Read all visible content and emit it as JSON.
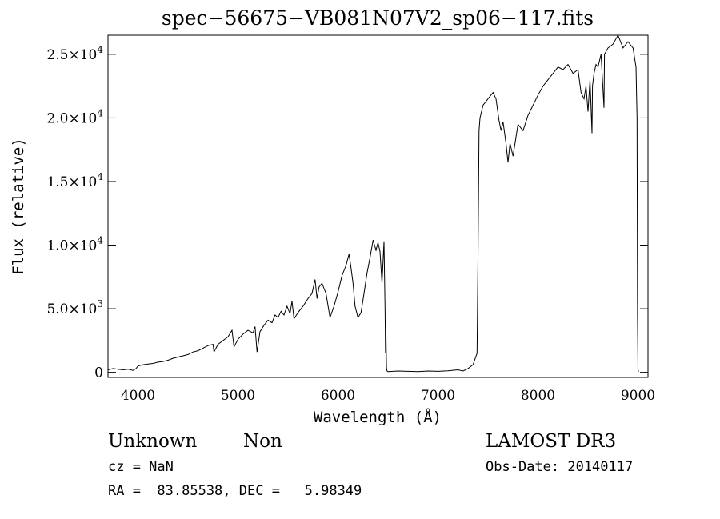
{
  "chart_data": {
    "type": "line",
    "title": "spec−56675−VB081N07V2_sp06−117.fits",
    "xlabel": "Wavelength (Å)",
    "ylabel": "Flux (relative)",
    "xlim": [
      3700,
      9100
    ],
    "ylim": [
      -400,
      26500
    ],
    "x_ticks": [
      4000,
      5000,
      6000,
      7000,
      8000,
      9000
    ],
    "x_tick_labels": [
      "4000",
      "5000",
      "6000",
      "7000",
      "8000",
      "9000"
    ],
    "y_ticks": [
      0,
      5000,
      10000,
      15000,
      20000,
      25000
    ],
    "y_tick_labels": [
      {
        "mantissa": "0",
        "exp": ""
      },
      {
        "mantissa": "5.0×10",
        "exp": "3"
      },
      {
        "mantissa": "1.0×10",
        "exp": "4"
      },
      {
        "mantissa": "1.5×10",
        "exp": "4"
      },
      {
        "mantissa": "2.0×10",
        "exp": "4"
      },
      {
        "mantissa": "2.5×10",
        "exp": "4"
      }
    ],
    "grid": false,
    "legend": "none",
    "line_color": "#000000",
    "series": [
      {
        "x": [
          3700,
          3750,
          3800,
          3850,
          3900,
          3950,
          3980,
          4000,
          4050,
          4100,
          4150,
          4200,
          4250,
          4300,
          4350,
          4400,
          4450,
          4500,
          4550,
          4600,
          4650,
          4700,
          4750,
          4760,
          4800,
          4850,
          4900,
          4940,
          4960,
          5000,
          5050,
          5100,
          5150,
          5170,
          5190,
          5220,
          5260,
          5300,
          5340,
          5370,
          5400,
          5430,
          5460,
          5490,
          5520,
          5540,
          5560,
          5600,
          5650,
          5700,
          5740,
          5770,
          5790,
          5810,
          5840,
          5880,
          5920,
          5960,
          6000,
          6040,
          6080,
          6110,
          6130,
          6150,
          6170,
          6200,
          6230,
          6260,
          6290,
          6320,
          6350,
          6380,
          6400,
          6420,
          6440,
          6460,
          6470,
          6475,
          6480,
          6485,
          6490,
          6500,
          6600,
          6700,
          6800,
          6900,
          7000,
          7100,
          7200,
          7250,
          7300,
          7350,
          7390,
          7400,
          7410,
          7420,
          7450,
          7500,
          7550,
          7580,
          7610,
          7630,
          7650,
          7680,
          7700,
          7720,
          7750,
          7780,
          7800,
          7850,
          7900,
          7950,
          8000,
          8050,
          8100,
          8150,
          8200,
          8250,
          8300,
          8350,
          8400,
          8430,
          8460,
          8480,
          8500,
          8520,
          8540,
          8545,
          8560,
          8580,
          8600,
          8630,
          8660,
          8665,
          8700,
          8750,
          8800,
          8850,
          8900,
          8950,
          8980,
          8990,
          8995,
          9000,
          9010
        ],
        "y": [
          200,
          300,
          250,
          200,
          250,
          150,
          300,
          500,
          600,
          650,
          700,
          800,
          850,
          950,
          1100,
          1200,
          1300,
          1400,
          1600,
          1700,
          1900,
          2100,
          2200,
          1600,
          2200,
          2500,
          2800,
          3300,
          2000,
          2600,
          3000,
          3300,
          3100,
          3600,
          1600,
          3200,
          3700,
          4100,
          3900,
          4500,
          4300,
          4800,
          4500,
          5200,
          4600,
          5600,
          4200,
          4700,
          5200,
          5800,
          6200,
          7300,
          5800,
          6700,
          7000,
          6200,
          4300,
          5200,
          6300,
          7600,
          8400,
          9300,
          8200,
          7000,
          5200,
          4300,
          4700,
          6200,
          7800,
          9000,
          10400,
          9600,
          10200,
          9500,
          7000,
          10300,
          5000,
          1500,
          3000,
          400,
          100,
          50,
          100,
          80,
          60,
          100,
          80,
          120,
          200,
          100,
          300,
          600,
          1500,
          9000,
          19000,
          20000,
          21000,
          21500,
          22000,
          21500,
          19800,
          19000,
          19700,
          18000,
          16500,
          18000,
          17000,
          18500,
          19500,
          19000,
          20200,
          21000,
          21800,
          22500,
          23000,
          23500,
          24000,
          23800,
          24200,
          23500,
          23800,
          22000,
          21500,
          22500,
          20500,
          23000,
          18800,
          22500,
          23500,
          24200,
          24000,
          25000,
          20800,
          25000,
          25500,
          25800,
          26500,
          25500,
          26000,
          25500,
          24000,
          20000,
          4500,
          100,
          100
        ]
      }
    ]
  },
  "info": {
    "object_class": "Unknown",
    "object_subclass": "Non",
    "survey": "LAMOST DR3",
    "cz": "cz = NaN",
    "obs_date": "Obs-Date: 20140117",
    "coords": "RA =  83.85538, DEC =   5.98349"
  }
}
